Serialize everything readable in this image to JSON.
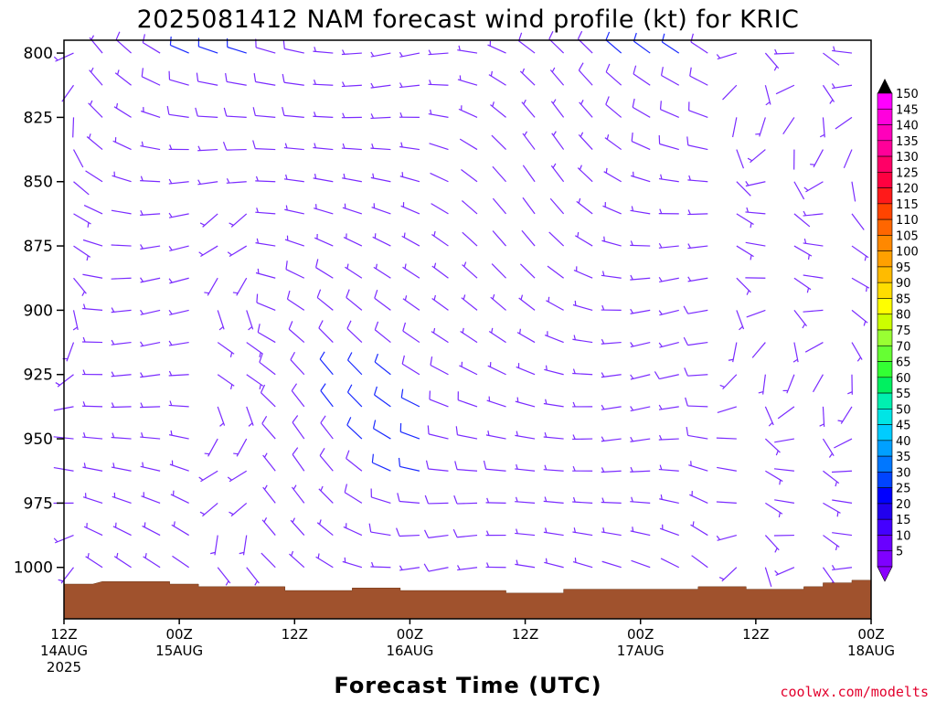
{
  "title": "2025081412 NAM forecast wind profile (kt) for KRIC",
  "credit": "coolwx.com/modelts",
  "chart_data": {
    "type": "wind-barb-profile",
    "title": "2025081412 NAM forecast wind profile (kt) for KRIC",
    "xlabel": "Forecast Time (UTC)",
    "ylabel": "",
    "y_axis": {
      "unit": "hPa",
      "range": [
        795,
        1020
      ],
      "inverted": true,
      "ticks": [
        800,
        825,
        850,
        875,
        900,
        925,
        950,
        975,
        1000
      ]
    },
    "x_axis": {
      "unit": "forecast hour",
      "range": [
        0,
        84
      ],
      "ticks": [
        {
          "hour": 0,
          "line1": "12Z",
          "line2": "14AUG",
          "line3": "2025"
        },
        {
          "hour": 12,
          "line1": "00Z",
          "line2": "15AUG",
          "line3": ""
        },
        {
          "hour": 24,
          "line1": "12Z",
          "line2": "",
          "line3": ""
        },
        {
          "hour": 36,
          "line1": "00Z",
          "line2": "16AUG",
          "line3": ""
        },
        {
          "hour": 48,
          "line1": "12Z",
          "line2": "",
          "line3": ""
        },
        {
          "hour": 60,
          "line1": "00Z",
          "line2": "17AUG",
          "line3": ""
        },
        {
          "hour": 72,
          "line1": "12Z",
          "line2": "",
          "line3": ""
        },
        {
          "hour": 84,
          "line1": "00Z",
          "line2": "18AUG",
          "line3": ""
        }
      ]
    },
    "wind_field": {
      "hours_first": 1,
      "hours_last": 84,
      "hours_step": 3,
      "levels_hpa": [
        800,
        812.5,
        825,
        837.5,
        850,
        862.5,
        875,
        887.5,
        900,
        912.5,
        925,
        937.5,
        950,
        962.5,
        975,
        987.5,
        1000
      ],
      "speed_range_kt": [
        2,
        12
      ],
      "predominant_direction": "WNW",
      "barb_color_low": "#7a2bff",
      "barb_color_high": "#1a2aff"
    },
    "surface_pressure_hpa": [
      {
        "hour": 0,
        "p": 1006.5
      },
      {
        "hour": 3,
        "p": 1006.5
      },
      {
        "hour": 4,
        "p": 1005.5
      },
      {
        "hour": 11,
        "p": 1005.5
      },
      {
        "hour": 11,
        "p": 1006.5
      },
      {
        "hour": 14,
        "p": 1006.5
      },
      {
        "hour": 14,
        "p": 1007.5
      },
      {
        "hour": 23,
        "p": 1007.5
      },
      {
        "hour": 23,
        "p": 1009
      },
      {
        "hour": 30,
        "p": 1009
      },
      {
        "hour": 30,
        "p": 1008
      },
      {
        "hour": 35,
        "p": 1008
      },
      {
        "hour": 35,
        "p": 1009
      },
      {
        "hour": 46,
        "p": 1009
      },
      {
        "hour": 46,
        "p": 1010
      },
      {
        "hour": 52,
        "p": 1010
      },
      {
        "hour": 52,
        "p": 1008.5
      },
      {
        "hour": 66,
        "p": 1008.5
      },
      {
        "hour": 66,
        "p": 1007.5
      },
      {
        "hour": 71,
        "p": 1007.5
      },
      {
        "hour": 71,
        "p": 1008.5
      },
      {
        "hour": 77,
        "p": 1008.5
      },
      {
        "hour": 77,
        "p": 1007.5
      },
      {
        "hour": 79,
        "p": 1007.5
      },
      {
        "hour": 79,
        "p": 1006
      },
      {
        "hour": 82,
        "p": 1006
      },
      {
        "hour": 82,
        "p": 1005
      },
      {
        "hour": 84,
        "p": 1005
      }
    ],
    "ground_color": "#a0522d",
    "colorbar": {
      "unit": "kt",
      "levels": [
        5,
        10,
        15,
        20,
        25,
        30,
        35,
        40,
        45,
        50,
        55,
        60,
        65,
        70,
        75,
        80,
        85,
        90,
        95,
        100,
        105,
        110,
        115,
        120,
        125,
        130,
        135,
        140,
        145,
        150
      ],
      "colors": [
        "#7f00ff",
        "#6a00ff",
        "#4400ff",
        "#2200ee",
        "#0000ff",
        "#0044ff",
        "#0077ff",
        "#00a0ff",
        "#00ccff",
        "#00e5e5",
        "#00f0b0",
        "#00f060",
        "#33ff33",
        "#66ff33",
        "#99ff33",
        "#ccff00",
        "#ffff00",
        "#ffdd00",
        "#ffbb00",
        "#ffa000",
        "#ff8800",
        "#ff6600",
        "#ff4400",
        "#ff1a1a",
        "#ff0040",
        "#ff0066",
        "#ff0099",
        "#ff00bb",
        "#ff00dd",
        "#ff00ff"
      ],
      "top_arrow_color": "#000000",
      "bottom_arrow_color": "#8a00ff"
    }
  }
}
